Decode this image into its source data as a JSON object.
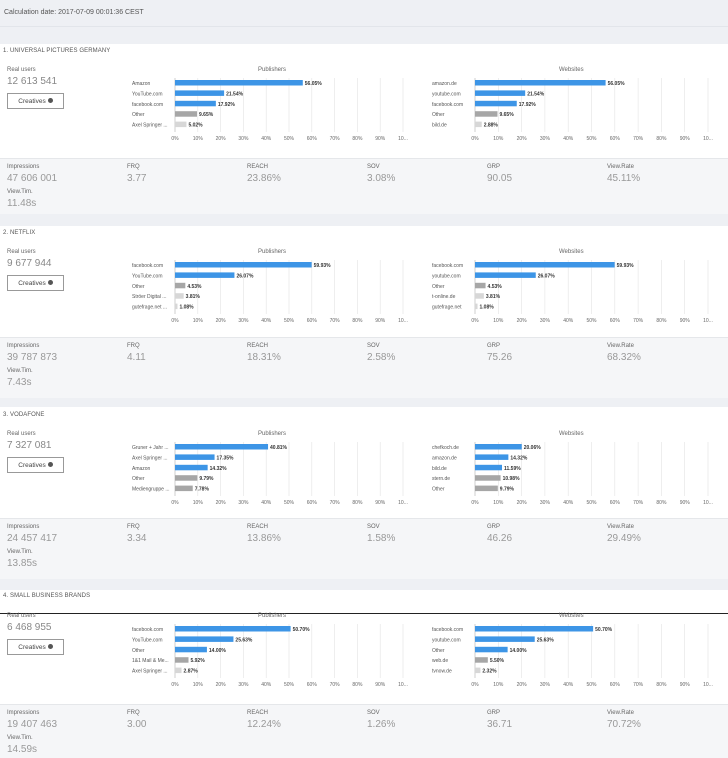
{
  "header": {
    "calc_date": "Calculation date: 2017-07-09 00:01:36 CEST"
  },
  "labels": {
    "real_users": "Real users",
    "creatives": "Creatives",
    "publishers": "Publishers",
    "websites": "Websites",
    "impressions": "Impressions",
    "frq": "FRQ",
    "reach": "REACH",
    "sov": "SOV",
    "grp": "GRP",
    "view_rate": "View.Rate",
    "view_time": "View.Tim."
  },
  "colors": {
    "bar_blue": "#3d95e6",
    "bar_gray": "#a6a6a6",
    "bar_light": "#d7d7d7"
  },
  "axis_ticks": [
    "0%",
    "10%",
    "20%",
    "30%",
    "40%",
    "50%",
    "60%",
    "70%",
    "80%",
    "90%",
    "10..."
  ],
  "sections": [
    {
      "title": "1. UNIVERSAL PICTURES GERMANY",
      "real_users": "12 613 541",
      "impressions": "47 606 001",
      "frq": "3.77",
      "reach": "23.86%",
      "sov": "3.08%",
      "grp": "90.05",
      "view_rate": "45.11%",
      "view_time": "11.48s",
      "chart_data": [
        {
          "type": "bar",
          "title": "Publishers",
          "ylim": [
            0,
            100
          ],
          "categories": [
            "Amazon",
            "YouTube.com",
            "facebook.com",
            "Other",
            "Axel Springer ..."
          ],
          "values": [
            56.05,
            21.54,
            17.92,
            9.65,
            5.02
          ],
          "labels": [
            "56.05%",
            "21.54%",
            "17.92%",
            "9.65%",
            "5.02%"
          ],
          "colors": [
            "blue",
            "blue",
            "blue",
            "gray",
            "light"
          ]
        },
        {
          "type": "bar",
          "title": "Websites",
          "ylim": [
            0,
            100
          ],
          "categories": [
            "amazon.de",
            "youtube.com",
            "facebook.com",
            "Other",
            "bild.de"
          ],
          "values": [
            56.05,
            21.54,
            17.92,
            9.65,
            2.88
          ],
          "labels": [
            "56.05%",
            "21.54%",
            "17.92%",
            "9.65%",
            "2.88%"
          ],
          "colors": [
            "blue",
            "blue",
            "blue",
            "gray",
            "light"
          ]
        }
      ]
    },
    {
      "title": "2. NETFLIX",
      "real_users": "9 677 944",
      "impressions": "39 787 873",
      "frq": "4.11",
      "reach": "18.31%",
      "sov": "2.58%",
      "grp": "75.26",
      "view_rate": "68.32%",
      "view_time": "7.43s",
      "chart_data": [
        {
          "type": "bar",
          "title": "Publishers",
          "ylim": [
            0,
            100
          ],
          "categories": [
            "facebook.com",
            "YouTube.com",
            "Other",
            "Ströer Digital ...",
            "gutefrage.net ..."
          ],
          "values": [
            59.93,
            26.07,
            4.53,
            3.81,
            1.08
          ],
          "labels": [
            "59.93%",
            "26.07%",
            "4.53%",
            "3.81%",
            "1.08%"
          ],
          "colors": [
            "blue",
            "blue",
            "gray",
            "light",
            "light"
          ]
        },
        {
          "type": "bar",
          "title": "Websites",
          "ylim": [
            0,
            100
          ],
          "categories": [
            "facebook.com",
            "youtube.com",
            "Other",
            "t-online.de",
            "gutefrage.net"
          ],
          "values": [
            59.93,
            26.07,
            4.53,
            3.81,
            1.08
          ],
          "labels": [
            "59.93%",
            "26.07%",
            "4.53%",
            "3.81%",
            "1.08%"
          ],
          "colors": [
            "blue",
            "blue",
            "gray",
            "light",
            "light"
          ]
        }
      ]
    },
    {
      "title": "3. VODAFONE",
      "real_users": "7 327 081",
      "impressions": "24 457 417",
      "frq": "3.34",
      "reach": "13.86%",
      "sov": "1.58%",
      "grp": "46.26",
      "view_rate": "29.49%",
      "view_time": "13.85s",
      "chart_data": [
        {
          "type": "bar",
          "title": "Publishers",
          "ylim": [
            0,
            100
          ],
          "categories": [
            "Gruner + Jahr ...",
            "Axel Springer ...",
            "Amazon",
            "Other",
            "Mediengruppe ..."
          ],
          "values": [
            40.81,
            17.35,
            14.32,
            9.79,
            7.78
          ],
          "labels": [
            "40.81%",
            "17.35%",
            "14.32%",
            "9.79%",
            "7.78%"
          ],
          "colors": [
            "blue",
            "blue",
            "blue",
            "gray",
            "gray"
          ]
        },
        {
          "type": "bar",
          "title": "Websites",
          "ylim": [
            0,
            100
          ],
          "categories": [
            "chefkoch.de",
            "amazon.de",
            "bild.de",
            "stern.de",
            "Other"
          ],
          "values": [
            20.06,
            14.32,
            11.59,
            10.98,
            9.79
          ],
          "labels": [
            "20.06%",
            "14.32%",
            "11.59%",
            "10.98%",
            "9.79%"
          ],
          "colors": [
            "blue",
            "blue",
            "blue",
            "gray",
            "gray"
          ]
        }
      ]
    },
    {
      "title": "4. SMALL BUSINESS BRANDS",
      "real_users": "6 468 955",
      "impressions": "19 407 463",
      "frq": "3.00",
      "reach": "12.24%",
      "sov": "1.26%",
      "grp": "36.71",
      "view_rate": "70.72%",
      "view_time": "14.59s",
      "chart_data": [
        {
          "type": "bar",
          "title": "Publishers",
          "ylim": [
            0,
            100
          ],
          "categories": [
            "facebook.com",
            "YouTube.com",
            "Other",
            "1&1 Mail & Me...",
            "Axel Springer ..."
          ],
          "values": [
            50.7,
            25.63,
            14.0,
            5.92,
            2.87
          ],
          "labels": [
            "50.70%",
            "25.63%",
            "14.00%",
            "5.92%",
            "2.87%"
          ],
          "colors": [
            "blue",
            "blue",
            "blue",
            "gray",
            "light"
          ]
        },
        {
          "type": "bar",
          "title": "Websites",
          "ylim": [
            0,
            100
          ],
          "categories": [
            "facebook.com",
            "youtube.com",
            "Other",
            "web.de",
            "tvnow.de"
          ],
          "values": [
            50.7,
            25.63,
            14.0,
            5.5,
            2.32
          ],
          "labels": [
            "50.70%",
            "25.63%",
            "14.00%",
            "5.50%",
            "2.32%"
          ],
          "colors": [
            "blue",
            "blue",
            "blue",
            "gray",
            "light"
          ]
        }
      ]
    }
  ]
}
